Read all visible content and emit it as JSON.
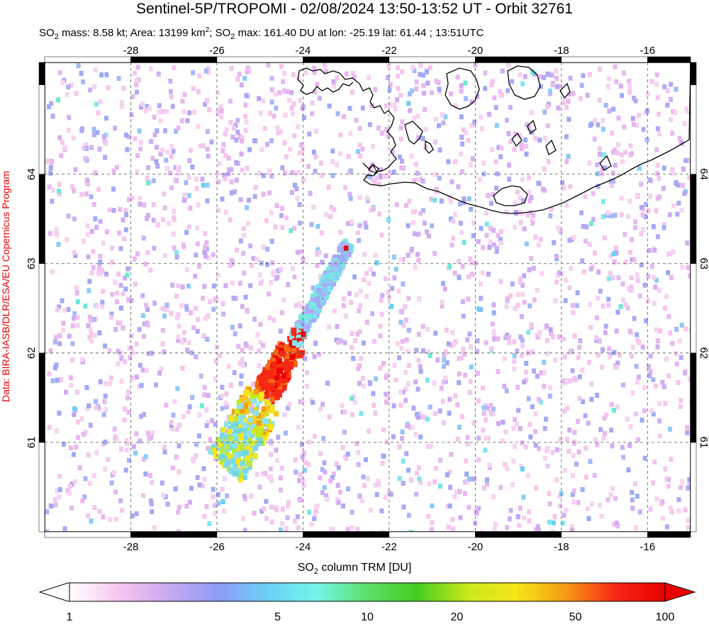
{
  "title": "Sentinel-5P/TROPOMI - 02/08/2024 13:50-13:52 UT - Orbit 32761",
  "stats": {
    "mass_prefix": "SO",
    "mass_sub": "2",
    "mass_text": " mass: 8.58 kt; Area: 13199 km",
    "area_sup": "2",
    "max_prefix": "; SO",
    "max_sub": "2",
    "max_text": " max: 161.40 DU at lon: -25.19 lat: 61.44 ; 13:51UTC"
  },
  "credit": "Data: BIRA-IASB/DLR/ESA/EU Copernicus Program",
  "map": {
    "lon_range": [
      -30,
      -15
    ],
    "lat_range": [
      60,
      65.25
    ],
    "lon_ticks": [
      "-28",
      "-26",
      "-24",
      "-22",
      "-20",
      "-18",
      "-16"
    ],
    "lat_ticks": [
      "61",
      "62",
      "63",
      "64"
    ],
    "gridlines": true,
    "coastline": "Iceland (south coast)",
    "plume": {
      "max_value_du": 161.4,
      "max_lon": -25.19,
      "max_lat": 61.44
    }
  },
  "colorbar": {
    "title_prefix": "SO",
    "title_sub": "2",
    "title_suffix": " column TRM [DU]",
    "ticks": [
      "1",
      "5",
      "10",
      "20",
      "50",
      "100"
    ],
    "colors": [
      "#ffffff",
      "#f7c6ef",
      "#c8a8f0",
      "#8f9cf5",
      "#6ad0f5",
      "#73f5e8",
      "#5ae06a",
      "#44cc22",
      "#c8e81c",
      "#f5e61a",
      "#f59a14",
      "#f52814",
      "#e80000"
    ]
  }
}
